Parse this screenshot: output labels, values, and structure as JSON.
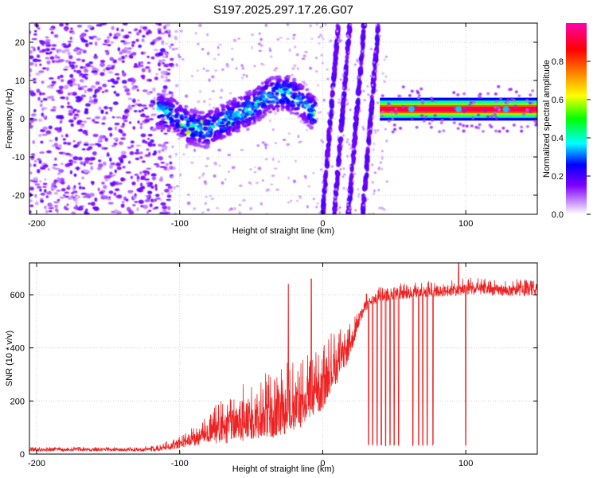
{
  "figure_title": "S197.2025.297.17.26.G07",
  "chart_data": [
    {
      "type": "heatmap",
      "title": "S197.2025.297.17.26.G07",
      "xlabel": "Height of straight line (km)",
      "ylabel": "Frequency (Hz)",
      "xlim": [
        -205,
        150
      ],
      "ylim": [
        -25,
        25
      ],
      "xticks": [
        -200,
        -100,
        0,
        100
      ],
      "yticks": [
        -20,
        -10,
        0,
        10,
        20
      ],
      "grid": true,
      "colorbar": {
        "label": "Normalized spectral amplitude",
        "range": [
          0,
          1
        ],
        "ticks": [
          "0.0",
          "0.2",
          "0.4",
          "0.6",
          "0.8"
        ],
        "colors": [
          "#ffffff",
          "#cc99ff",
          "#8000ff",
          "#0000ff",
          "#00ffff",
          "#00ff00",
          "#ffff00",
          "#ff8000",
          "#ff0000",
          "#ff00aa"
        ]
      },
      "features": [
        {
          "name": "noise",
          "x_range": [
            -205,
            -115
          ],
          "freq_range": [
            -25,
            25
          ],
          "amplitude": "0.2-0.4"
        },
        {
          "name": "wandering trace",
          "x_range": [
            -115,
            -5
          ],
          "freq_center": [
            2,
            1,
            -2,
            -3,
            -1,
            1,
            3,
            6,
            7,
            5,
            1
          ],
          "amplitude_peak": 0.75
        },
        {
          "name": "diagonal stripes",
          "x_range": [
            0,
            40
          ],
          "count": 4,
          "slope": "frequency rising with height"
        },
        {
          "name": "carrier band",
          "x_range": [
            40,
            150
          ],
          "freq_center": 2.5,
          "amplitude_peak": 0.95
        }
      ]
    },
    {
      "type": "line",
      "xlabel": "Height of straight line (km)",
      "ylabel": "SNR (10 * v/v)",
      "xlim": [
        -205,
        150
      ],
      "ylim": [
        0,
        720
      ],
      "xticks": [
        -200,
        -100,
        0,
        100
      ],
      "yticks": [
        0,
        200,
        400,
        600
      ],
      "grid": true,
      "series": [
        {
          "name": "SNR",
          "color": "#ee2222",
          "x": [
            -205,
            -190,
            -170,
            -150,
            -130,
            -115,
            -105,
            -95,
            -85,
            -75,
            -65,
            -55,
            -45,
            -35,
            -25,
            -15,
            -5,
            0,
            5,
            10,
            15,
            20,
            25,
            30,
            35,
            40,
            50,
            60,
            70,
            80,
            90,
            100,
            110,
            120,
            130,
            140,
            150
          ],
          "base": [
            15,
            16,
            17,
            16,
            16,
            18,
            30,
            45,
            65,
            85,
            100,
            120,
            130,
            140,
            160,
            180,
            220,
            240,
            300,
            330,
            370,
            420,
            500,
            560,
            580,
            590,
            600,
            605,
            610,
            612,
            615,
            620,
            620,
            618,
            615,
            615,
            620
          ],
          "spread": [
            10,
            10,
            10,
            10,
            10,
            15,
            25,
            35,
            60,
            90,
            120,
            140,
            150,
            160,
            170,
            160,
            160,
            150,
            140,
            130,
            110,
            80,
            50,
            40,
            40,
            40,
            40,
            40,
            40,
            40,
            40,
            40,
            40,
            40,
            40,
            40,
            40
          ],
          "dropouts": [
            32,
            35,
            38,
            41,
            44,
            47,
            50,
            53,
            63,
            67,
            70,
            73,
            77,
            100
          ],
          "spikes": [
            {
              "x": -24,
              "y": 640
            },
            {
              "x": -8,
              "y": 660
            },
            {
              "x": 95,
              "y": 720
            }
          ]
        }
      ]
    }
  ]
}
